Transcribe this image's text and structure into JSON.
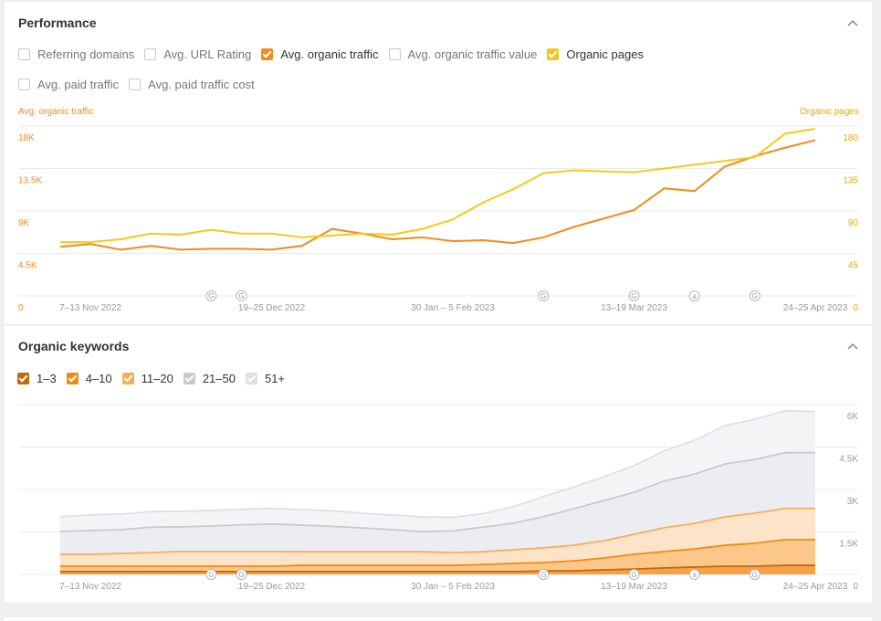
{
  "performance": {
    "title": "Performance",
    "metrics": [
      {
        "label": "Referring domains",
        "checked": false
      },
      {
        "label": "Avg. URL Rating",
        "checked": false
      },
      {
        "label": "Avg. organic traffic",
        "checked": true,
        "color": "#f28b1a"
      },
      {
        "label": "Avg. organic traffic value",
        "checked": false
      },
      {
        "label": "Organic pages",
        "checked": true,
        "color": "#f5c518"
      },
      {
        "label": "Avg. paid traffic",
        "checked": false
      },
      {
        "label": "Avg. paid traffic cost",
        "checked": false
      }
    ],
    "chart": {
      "type": "line",
      "categories": [
        null,
        "7–13 Nov 2022",
        null,
        null,
        null,
        null,
        null,
        "19–25 Dec 2022",
        null,
        null,
        null,
        null,
        null,
        "30 Jan – 5 Feb 2023",
        null,
        null,
        null,
        null,
        null,
        "13–19 Mar 2023",
        null,
        null,
        null,
        null,
        null,
        "24–25 Apr 2023"
      ],
      "markers": [
        null,
        null,
        null,
        null,
        null,
        "G",
        "G",
        null,
        null,
        null,
        null,
        null,
        null,
        null,
        null,
        null,
        "G",
        null,
        null,
        "G",
        null,
        "a",
        null,
        "G",
        null,
        null
      ],
      "series": [
        {
          "name": "Avg. organic traffic",
          "color": "#f28b1a",
          "axis": "y",
          "values": [
            5200,
            5500,
            4900,
            5300,
            4900,
            5000,
            5000,
            4900,
            5300,
            7100,
            6600,
            6000,
            6200,
            5800,
            5900,
            5600,
            6200,
            7300,
            8200,
            9100,
            11400,
            11100,
            13700,
            14800,
            15700,
            16500
          ]
        },
        {
          "name": "Organic pages",
          "color": "#f7c919",
          "axis": "y2",
          "values": [
            57,
            57,
            60,
            66,
            65,
            70,
            66,
            66,
            62,
            64,
            66,
            65,
            71,
            81,
            99,
            113,
            130,
            133,
            132,
            131,
            135,
            139,
            143,
            147,
            172,
            177
          ]
        }
      ],
      "ylim": [
        0,
        18000
      ],
      "yticks": [
        0,
        {
          "value": 4500,
          "label": "4.5K"
        },
        {
          "value": 9000,
          "label": "9K"
        },
        {
          "value": 13500,
          "label": "13.5K"
        },
        {
          "value": 18000,
          "label": "18K"
        }
      ],
      "y2lim": [
        0,
        180
      ],
      "y2ticks": [
        0,
        45,
        90,
        135,
        180
      ],
      "grid": true
    }
  },
  "keywords": {
    "title": "Organic keywords",
    "chart": {
      "type": "area",
      "stacked": true,
      "categories": [
        null,
        "7–13 Nov 2022",
        null,
        null,
        null,
        null,
        null,
        "19–25 Dec 2022",
        null,
        null,
        null,
        null,
        null,
        "30 Jan – 5 Feb 2023",
        null,
        null,
        null,
        null,
        null,
        "13–19 Mar 2023",
        null,
        null,
        null,
        null,
        null,
        "24–25 Apr 2023"
      ],
      "markers": [
        null,
        null,
        null,
        null,
        null,
        "G",
        "G",
        null,
        null,
        null,
        null,
        null,
        null,
        null,
        null,
        null,
        "G",
        null,
        null,
        "G",
        null,
        "a",
        null,
        "G",
        null,
        null
      ],
      "series": [
        {
          "name": "1–3",
          "color": "#c4690a",
          "fill": "#f5a24a",
          "values": [
            100,
            100,
            100,
            100,
            100,
            100,
            100,
            100,
            100,
            100,
            100,
            100,
            100,
            100,
            100,
            100,
            120,
            130,
            160,
            190,
            230,
            260,
            290,
            290,
            320,
            320
          ]
        },
        {
          "name": "4–10",
          "color": "#f28a10",
          "fill": "#fcc78a",
          "values": [
            190,
            190,
            190,
            190,
            190,
            190,
            190,
            190,
            220,
            220,
            220,
            220,
            220,
            220,
            250,
            290,
            300,
            350,
            420,
            520,
            580,
            640,
            740,
            810,
            910,
            910
          ]
        },
        {
          "name": "11–20",
          "color": "#f7ad5c",
          "fill": "#fde4c8",
          "values": [
            420,
            420,
            450,
            480,
            520,
            520,
            520,
            520,
            480,
            480,
            480,
            480,
            480,
            450,
            450,
            480,
            520,
            550,
            610,
            710,
            840,
            900,
            1000,
            1060,
            1100,
            1100
          ]
        },
        {
          "name": "21–50",
          "color": "#c6cbd3",
          "fill": "#ebedf1",
          "values": [
            810,
            840,
            840,
            900,
            870,
            900,
            940,
            970,
            940,
            900,
            840,
            780,
            710,
            770,
            870,
            940,
            1100,
            1290,
            1420,
            1480,
            1650,
            1740,
            1870,
            1900,
            1970,
            1970
          ]
        },
        {
          "name": "51+",
          "color": "#dde0e6",
          "fill": "#f3f4f6",
          "values": [
            520,
            550,
            550,
            550,
            550,
            550,
            550,
            550,
            550,
            550,
            520,
            520,
            520,
            480,
            480,
            580,
            710,
            770,
            840,
            940,
            1070,
            1190,
            1360,
            1420,
            1480,
            1450
          ]
        }
      ],
      "ylim": [
        0,
        6000
      ],
      "yticks": [
        0,
        {
          "value": 1500,
          "label": "1.5K"
        },
        {
          "value": 3000,
          "label": "3K"
        },
        {
          "value": 4500,
          "label": "4.5K"
        },
        {
          "value": 6000,
          "label": "6K"
        }
      ],
      "grid": true
    }
  }
}
